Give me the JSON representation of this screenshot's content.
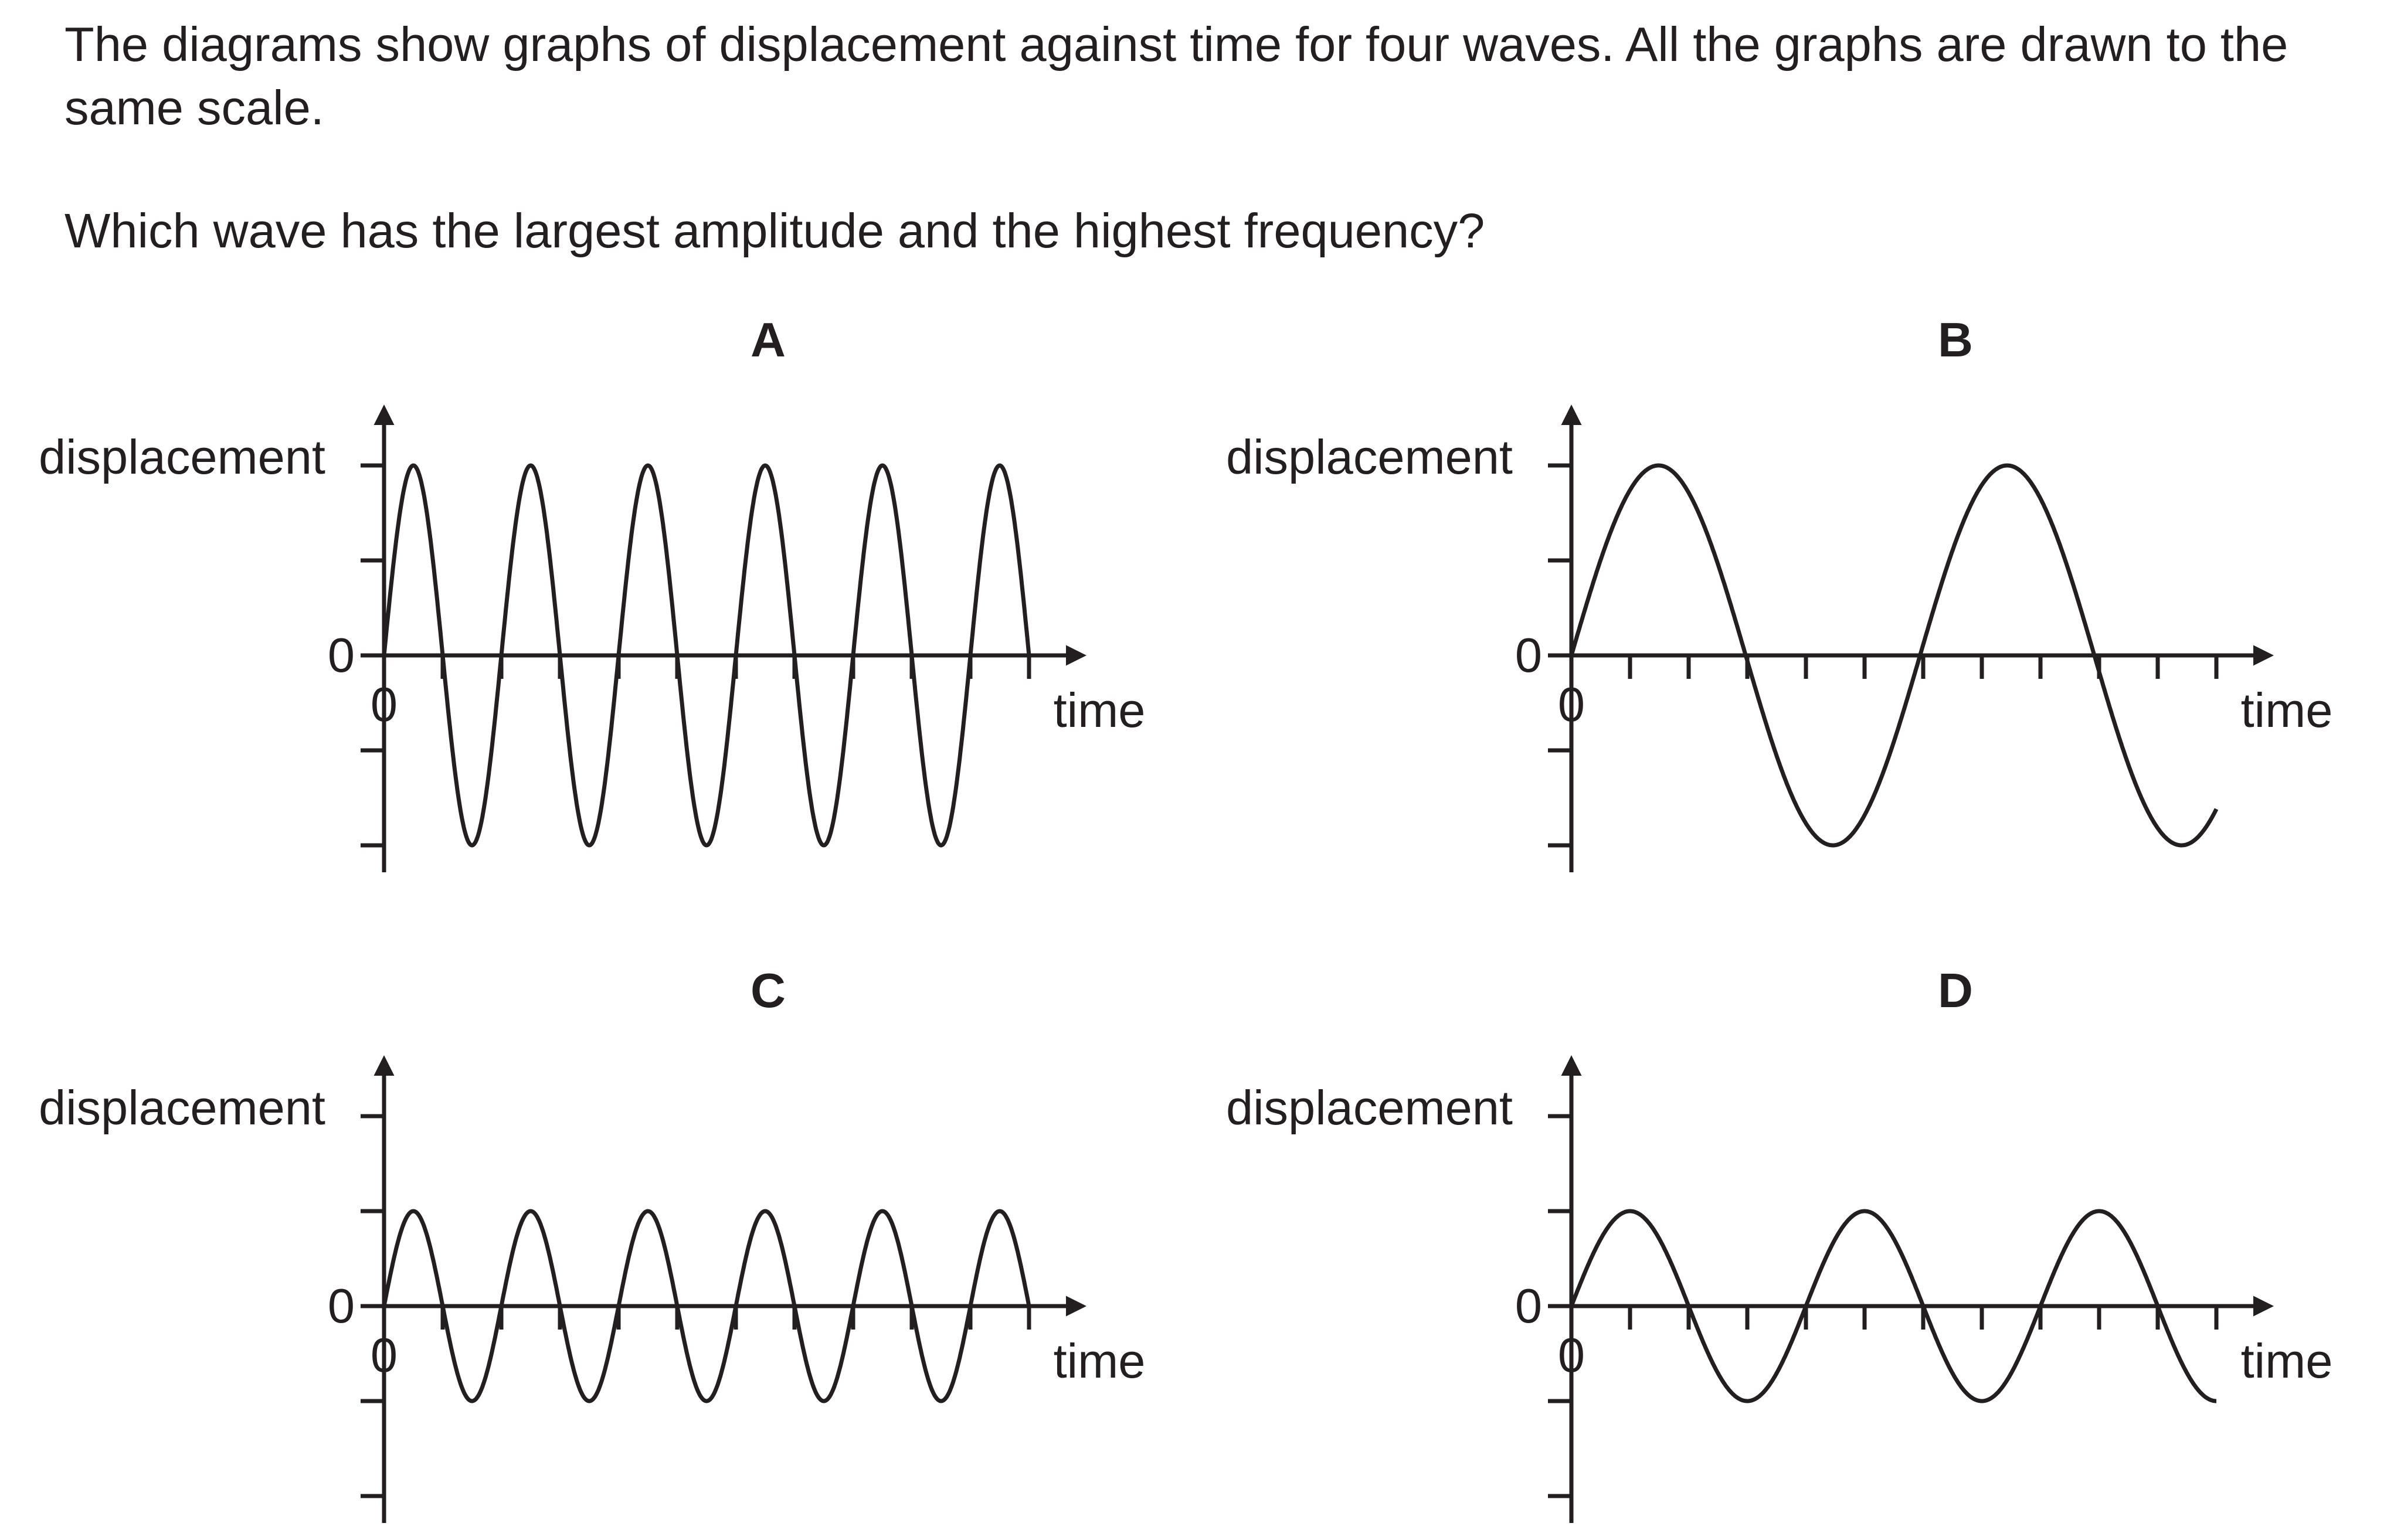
{
  "question": {
    "intro": "The diagrams show graphs of displacement against time for four waves. All the graphs are drawn to the same scale.",
    "prompt": "Which wave has the largest amplitude and the highest frequency?"
  },
  "axes": {
    "ylabel": "displacement",
    "xlabel": "time",
    "y_origin_label": "0",
    "x_origin_label": "0"
  },
  "chart_data": [
    {
      "type": "line",
      "title": "A",
      "amplitude": 2,
      "cycles": 5.5,
      "ylim": [
        -2,
        2
      ],
      "x_ticks": 11,
      "y_ticks": [
        -2,
        -1,
        1,
        2
      ],
      "xlabel": "time",
      "ylabel": "displacement"
    },
    {
      "type": "line",
      "title": "B",
      "amplitude": 2,
      "cycles": 1.85,
      "ylim": [
        -2,
        2
      ],
      "x_ticks": 11,
      "y_ticks": [
        -2,
        -1,
        1,
        2
      ],
      "xlabel": "time",
      "ylabel": "displacement"
    },
    {
      "type": "line",
      "title": "C",
      "amplitude": 1,
      "cycles": 5.5,
      "ylim": [
        -2,
        2
      ],
      "x_ticks": 11,
      "y_ticks": [
        -2,
        -1,
        1,
        2
      ],
      "xlabel": "time",
      "ylabel": "displacement"
    },
    {
      "type": "line",
      "title": "D",
      "amplitude": 1,
      "cycles": 2.75,
      "ylim": [
        -2,
        2
      ],
      "x_ticks": 11,
      "y_ticks": [
        -2,
        -1,
        1,
        2
      ],
      "xlabel": "time",
      "ylabel": "displacement"
    }
  ],
  "colors": {
    "ink": "#231f20"
  }
}
